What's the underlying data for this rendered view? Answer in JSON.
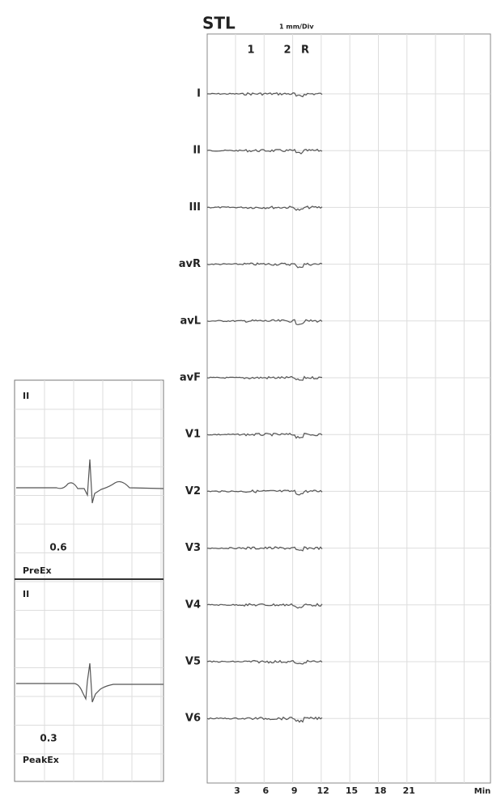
{
  "header": {
    "title": "STL",
    "scale": "1 mm/Div",
    "markers": [
      "1",
      "2",
      "R"
    ]
  },
  "leads": [
    "I",
    "II",
    "III",
    "avR",
    "avL",
    "avF",
    "V1",
    "V2",
    "V3",
    "V4",
    "V5",
    "V6"
  ],
  "x_axis": {
    "ticks": [
      3,
      6,
      9,
      12,
      15,
      18,
      21
    ],
    "unit": "Min"
  },
  "panels": [
    {
      "lead": "II",
      "value": "0.6",
      "label": "PreEx"
    },
    {
      "lead": "II",
      "value": "0.3",
      "label": "PeakEx"
    }
  ]
}
